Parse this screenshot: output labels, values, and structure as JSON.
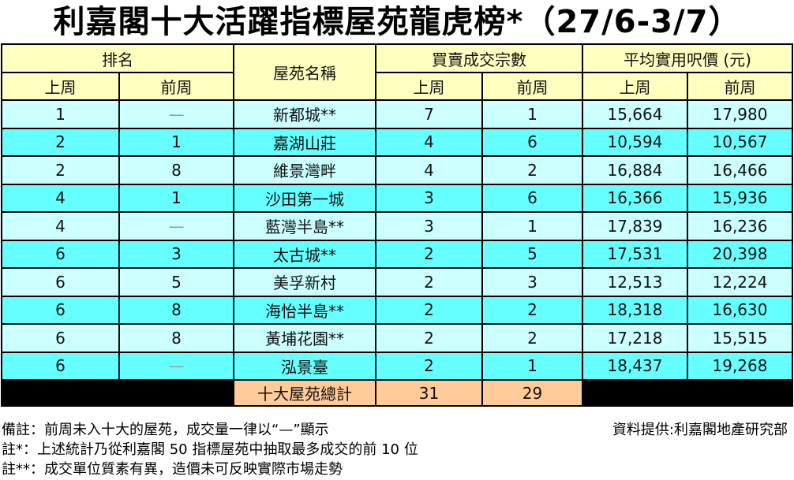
{
  "title": "利嘉閣十大活躍指標屋苑龍虎榜*（27/6-3/7）",
  "headers": {
    "rank": "排名",
    "estate": "屋苑名稱",
    "transactions": "買賣成交宗數",
    "price": "平均實用呎價 (元)",
    "last_week": "上周",
    "prev_week": "前周"
  },
  "rows": [
    {
      "rank": "1",
      "prev_rank": "—",
      "estate": "新都城**",
      "tx_last": "7",
      "tx_prev": "1",
      "price_last": "15,664",
      "price_prev": "17,980"
    },
    {
      "rank": "2",
      "prev_rank": "1",
      "estate": "嘉湖山莊",
      "tx_last": "4",
      "tx_prev": "6",
      "price_last": "10,594",
      "price_prev": "10,567"
    },
    {
      "rank": "2",
      "prev_rank": "8",
      "estate": "維景灣畔",
      "tx_last": "4",
      "tx_prev": "2",
      "price_last": "16,884",
      "price_prev": "16,466"
    },
    {
      "rank": "4",
      "prev_rank": "1",
      "estate": "沙田第一城",
      "tx_last": "3",
      "tx_prev": "6",
      "price_last": "16,366",
      "price_prev": "15,936"
    },
    {
      "rank": "4",
      "prev_rank": "—",
      "estate": "藍灣半島**",
      "tx_last": "3",
      "tx_prev": "1",
      "price_last": "17,839",
      "price_prev": "16,236"
    },
    {
      "rank": "6",
      "prev_rank": "3",
      "estate": "太古城**",
      "tx_last": "2",
      "tx_prev": "5",
      "price_last": "17,531",
      "price_prev": "20,398"
    },
    {
      "rank": "6",
      "prev_rank": "5",
      "estate": "美孚新村",
      "tx_last": "2",
      "tx_prev": "3",
      "price_last": "12,513",
      "price_prev": "12,224"
    },
    {
      "rank": "6",
      "prev_rank": "8",
      "estate": "海怡半島**",
      "tx_last": "2",
      "tx_prev": "2",
      "price_last": "18,318",
      "price_prev": "16,630"
    },
    {
      "rank": "6",
      "prev_rank": "8",
      "estate": "黃埔花園**",
      "tx_last": "2",
      "tx_prev": "2",
      "price_last": "17,218",
      "price_prev": "15,515"
    },
    {
      "rank": "6",
      "prev_rank": "—",
      "estate": "泓景臺",
      "tx_last": "2",
      "tx_prev": "1",
      "price_last": "18,437",
      "price_prev": "19,268"
    }
  ],
  "total": {
    "label": "十大屋苑總計",
    "tx_last": "31",
    "tx_prev": "29"
  },
  "notes": {
    "remark": "備註：前周未入十大的屋苑，成交量一律以“—”顯示",
    "source": "資料提供:利嘉閣地產研究部",
    "note1": "註*：上述統計乃從利嘉閣 50 指標屋苑中抽取最多成交的前 10 位",
    "note2": "註**：成交單位質素有異，造價未可反映實際市場走勢"
  },
  "colors": {
    "header": "#ffffc0",
    "row_light": "#ccffff",
    "row_dark": "#66ffff",
    "total": "#ffcc99"
  }
}
